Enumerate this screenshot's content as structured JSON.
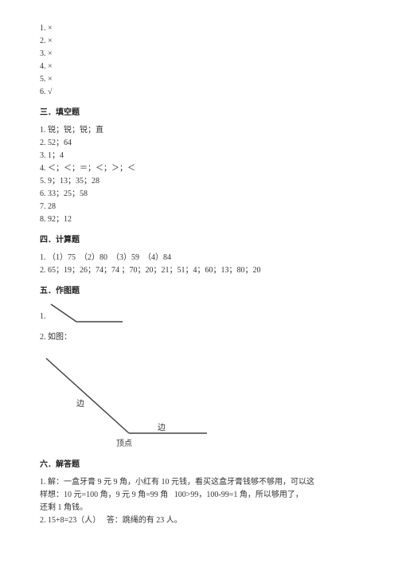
{
  "section_tf": {
    "items": [
      {
        "n": "1",
        "mark": "×"
      },
      {
        "n": "2",
        "mark": "×"
      },
      {
        "n": "3",
        "mark": "×"
      },
      {
        "n": "4",
        "mark": "×"
      },
      {
        "n": "5",
        "mark": "×"
      },
      {
        "n": "6",
        "mark": "√"
      }
    ]
  },
  "section3": {
    "heading": "三．填空题",
    "lines": [
      "1. 锐；锐；锐；直",
      "2. 52；64",
      "3. 1；4",
      "4. ＜；＜；＝；＜；＞；＜",
      "5. 9；13；35；28",
      "6. 33；25；58",
      "7. 28",
      "8. 92；12"
    ]
  },
  "section4": {
    "heading": "四．计算题",
    "lines": [
      "1. （1）75  （2）80  （3）59  （4）84",
      "2. 65；19；26；74；74 ；70；20；21；51；4；60；13；80；20"
    ]
  },
  "section5": {
    "heading": "五．作图题",
    "item1_prefix": "1.",
    "item2": "2. 如图：",
    "fig2_labels": {
      "side1": "边",
      "vertex": "顶点",
      "side2": "边"
    },
    "style": {
      "stroke": "#444444",
      "strokeWidth": 1.5,
      "label_color": "#333333",
      "label_fontsize": 10
    }
  },
  "section6": {
    "heading": "六．解答题",
    "lines": [
      "1. 解：一盒牙膏 9 元 9 角，小红有 10 元钱，看买这盒牙膏钱够不够用，可以这",
      "样想：10 元=100 角，9 元 9 角=99 角   100>99，100-99=1 角，所以够用了，",
      "还剩 1 角钱。",
      "2. 15+8=23（人）   答：跳绳的有 23 人。"
    ]
  }
}
